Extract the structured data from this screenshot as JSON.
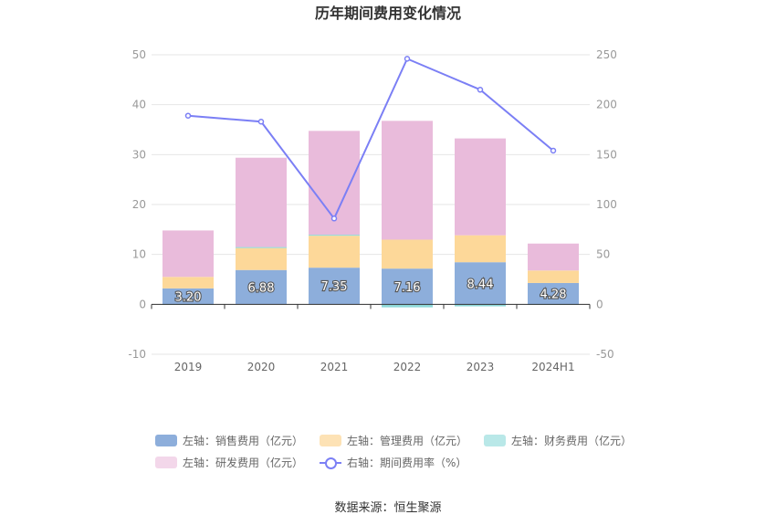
{
  "chart_data": {
    "type": "bar",
    "title": "历年期间费用变化情况",
    "categories": [
      "2019",
      "2020",
      "2021",
      "2022",
      "2023",
      "2024H1"
    ],
    "left_axis": {
      "ylim": [
        -10,
        50
      ],
      "ticks": [
        -10,
        0,
        10,
        20,
        30,
        40,
        50
      ]
    },
    "right_axis": {
      "ylim": [
        -50,
        250
      ],
      "ticks": [
        -50,
        0,
        50,
        100,
        150,
        200,
        250
      ]
    },
    "series": [
      {
        "name": "左轴：销售费用（亿元）",
        "type": "bar",
        "axis": "left",
        "color": "#8daedb",
        "values": [
          3.2,
          6.88,
          7.35,
          7.16,
          8.44,
          4.28
        ],
        "labels": [
          "3.20",
          "6.88",
          "7.35",
          "7.16",
          "8.44",
          "4.28"
        ]
      },
      {
        "name": "左轴：管理费用（亿元）",
        "type": "bar",
        "axis": "left",
        "color": "#fdd899",
        "values": [
          2.3,
          4.4,
          6.4,
          5.8,
          5.4,
          2.5
        ]
      },
      {
        "name": "左轴：财务费用（亿元）",
        "type": "bar",
        "axis": "left",
        "color": "#8fdada",
        "values": [
          -0.1,
          0.2,
          0.2,
          -0.6,
          -0.4,
          -0.1
        ]
      },
      {
        "name": "左轴：研发费用（亿元）",
        "type": "bar",
        "axis": "left",
        "color": "#e9bbdb",
        "values": [
          9.3,
          17.9,
          20.8,
          23.8,
          19.4,
          5.4
        ]
      },
      {
        "name": "右轴：期间费用率（%）",
        "type": "line",
        "axis": "right",
        "color": "#7b7ff5",
        "values": [
          189,
          183,
          86,
          246,
          215,
          154
        ]
      }
    ],
    "grid": true,
    "legend_position": "bottom"
  },
  "legend": {
    "items": [
      {
        "label": "左轴：销售费用（亿元）",
        "color": "#8daedb",
        "kind": "bar"
      },
      {
        "label": "左轴：管理费用（亿元）",
        "color": "#fde2b5",
        "kind": "bar"
      },
      {
        "label": "左轴：财务费用（亿元）",
        "color": "#b9e8e8",
        "kind": "bar"
      },
      {
        "label": "左轴：研发费用（亿元）",
        "color": "#f3d7ea",
        "kind": "bar"
      },
      {
        "label": "右轴：期间费用率（%）",
        "color": "#7b7ff5",
        "kind": "line"
      }
    ]
  },
  "source": "数据来源：恒生聚源"
}
